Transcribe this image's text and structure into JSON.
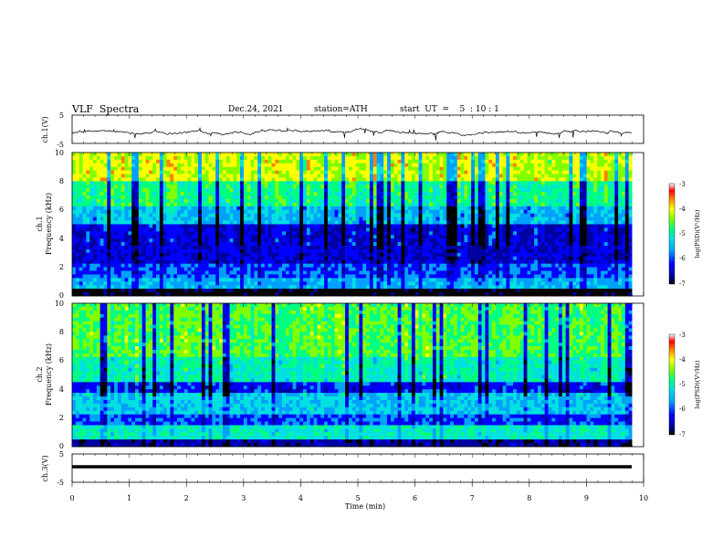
{
  "header": {
    "title": "VLF  Spectra",
    "date": "Dec.24, 2021",
    "station": "station=ATH",
    "start": "start  UT  =    5  : 10 : 1"
  },
  "colors": {
    "spectrum": [
      "#000000",
      "#0000a0",
      "#0000ff",
      "#00a0ff",
      "#00e0e0",
      "#00ff80",
      "#80ff00",
      "#ffff00",
      "#ff8000",
      "#ff0000",
      "#ffffff"
    ]
  },
  "chart_data": [
    {
      "type": "line",
      "ylabel": "ch.1(V)",
      "ylim": [
        -5,
        5
      ],
      "yticks": [
        "5",
        "-5"
      ],
      "description_series": "noisy voltage trace around -1 V",
      "baseline": -1
    },
    {
      "type": "heatmap",
      "ylabel": "ch.1\nFrequency (kHz)",
      "ylabel_line1": "ch.1",
      "ylabel_line2": "Frequency  (kHz)",
      "ylim": [
        0,
        10
      ],
      "yticks": [
        "0",
        "2",
        "4",
        "6",
        "8",
        "10"
      ],
      "colorbar": {
        "label": "log(PSD)(V²/Hz)",
        "range": [
          -7,
          -3
        ],
        "ticks": [
          "-3",
          "-4",
          "-5",
          "-6",
          "-7"
        ]
      }
    },
    {
      "type": "heatmap",
      "ylabel_line1": "ch.2",
      "ylabel_line2": "Frequency  (kHz)",
      "ylim": [
        0,
        10
      ],
      "yticks": [
        "0",
        "2",
        "4",
        "6",
        "8",
        "10"
      ],
      "colorbar": {
        "label": "log(PSD)(V²/Hz)",
        "range": [
          -7,
          -3
        ],
        "ticks": [
          "-3",
          "-4",
          "-5",
          "-6",
          "-7"
        ]
      }
    },
    {
      "type": "line",
      "ylabel": "ch.3(V)",
      "ylim": [
        -5,
        5
      ],
      "yticks": [
        "5",
        "-5"
      ],
      "baseline": -1
    }
  ],
  "xaxis": {
    "label": "Time  (min)",
    "ticks": [
      "0",
      "1",
      "2",
      "3",
      "4",
      "5",
      "6",
      "7",
      "8",
      "9",
      "10"
    ],
    "range": [
      0,
      10
    ],
    "data_end": 9.8
  }
}
